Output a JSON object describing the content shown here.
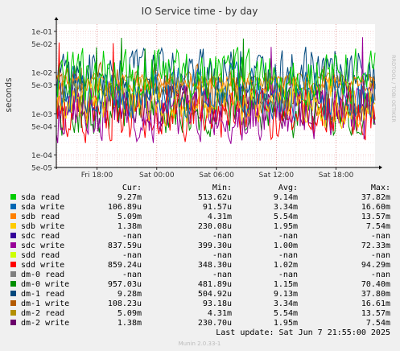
{
  "chart_data": {
    "type": "line",
    "title": "IO Service time - by day",
    "ylabel": "seconds",
    "yscale": "log",
    "ylim": [
      5e-05,
      0.15
    ],
    "y_ticks": [
      {
        "label": "1e-01",
        "value": 0.1
      },
      {
        "label": "5e-02",
        "value": 0.05
      },
      {
        "label": "1e-02",
        "value": 0.01
      },
      {
        "label": "5e-03",
        "value": 0.005
      },
      {
        "label": "1e-03",
        "value": 0.001
      },
      {
        "label": "5e-04",
        "value": 0.0005
      },
      {
        "label": "1e-04",
        "value": 0.0001
      },
      {
        "label": "5e-05",
        "value": 5e-05
      }
    ],
    "xlim": [
      "2025-06-06 13:55",
      "2025-06-07 21:55"
    ],
    "x_ticks": [
      {
        "label": "Fri 18:00",
        "value": "2025-06-06 18:00"
      },
      {
        "label": "Sat 00:00",
        "value": "2025-06-07 00:00"
      },
      {
        "label": "Sat 06:00",
        "value": "2025-06-07 06:00"
      },
      {
        "label": "Sat 12:00",
        "value": "2025-06-07 12:00"
      },
      {
        "label": "Sat 18:00",
        "value": "2025-06-07 18:00"
      }
    ],
    "grid": true,
    "watermark": "RRDTOOL / TOBI OETIKER",
    "legend_columns": [
      "Cur:",
      "Min:",
      "Avg:",
      "Max:"
    ],
    "series": [
      {
        "name": "sda read",
        "color": "#00cc00",
        "cur": "9.27m",
        "min": "513.62u",
        "avg": "9.14m",
        "max": "37.82m"
      },
      {
        "name": "sda write",
        "color": "#0066b3",
        "cur": "106.89u",
        "min": "91.57u",
        "avg": "3.34m",
        "max": "16.60m"
      },
      {
        "name": "sdb read",
        "color": "#ff8000",
        "cur": "5.09m",
        "min": "4.31m",
        "avg": "5.54m",
        "max": "13.57m"
      },
      {
        "name": "sdb write",
        "color": "#ffcc00",
        "cur": "1.38m",
        "min": "230.08u",
        "avg": "1.95m",
        "max": "7.54m"
      },
      {
        "name": "sdc read",
        "color": "#330099",
        "cur": "-nan",
        "min": "-nan",
        "avg": "-nan",
        "max": "-nan"
      },
      {
        "name": "sdc write",
        "color": "#990099",
        "cur": "837.59u",
        "min": "399.30u",
        "avg": "1.00m",
        "max": "72.33m"
      },
      {
        "name": "sdd read",
        "color": "#ccff00",
        "cur": "-nan",
        "min": "-nan",
        "avg": "-nan",
        "max": "-nan"
      },
      {
        "name": "sdd write",
        "color": "#ff0000",
        "cur": "859.24u",
        "min": "348.30u",
        "avg": "1.02m",
        "max": "94.29m"
      },
      {
        "name": "dm-0 read",
        "color": "#808080",
        "cur": "-nan",
        "min": "-nan",
        "avg": "-nan",
        "max": "-nan"
      },
      {
        "name": "dm-0 write",
        "color": "#008f00",
        "cur": "957.03u",
        "min": "481.89u",
        "avg": "1.15m",
        "max": "70.40m"
      },
      {
        "name": "dm-1 read",
        "color": "#00487d",
        "cur": "9.28m",
        "min": "504.92u",
        "avg": "9.13m",
        "max": "37.80m"
      },
      {
        "name": "dm-1 write",
        "color": "#b35a00",
        "cur": "108.23u",
        "min": "93.18u",
        "avg": "3.34m",
        "max": "16.61m"
      },
      {
        "name": "dm-2 read",
        "color": "#b38f00",
        "cur": "5.09m",
        "min": "4.31m",
        "avg": "5.54m",
        "max": "13.57m"
      },
      {
        "name": "dm-2 write",
        "color": "#6b006b",
        "cur": "1.38m",
        "min": "230.70u",
        "avg": "1.95m",
        "max": "7.54m"
      }
    ],
    "last_update": "Last update:  Sat Jun  7 21:55:00 2025",
    "footer": "Munin 2.0.33-1"
  }
}
